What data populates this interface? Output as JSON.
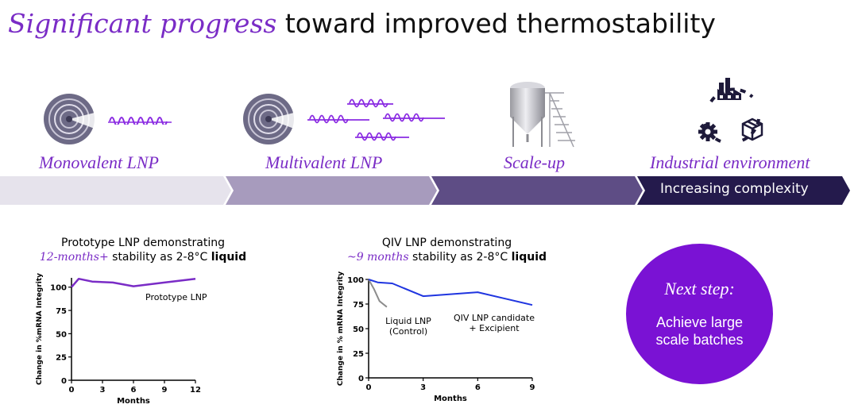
{
  "title": {
    "highlight": "Significant progress",
    "rest": "toward improved thermostability"
  },
  "stages": [
    {
      "label": "Monovalent LNP",
      "icon": "lnp-sphere-with-mrna"
    },
    {
      "label": "Multivalent LNP",
      "icon": "lnp-sphere-with-multiple-mrna"
    },
    {
      "label": "Scale-up",
      "icon": "bioreactor-tank"
    },
    {
      "label": "Industrial environment",
      "icon": "factory-gear-box-cycle"
    }
  ],
  "progress_bar": {
    "label": "Increasing complexity",
    "colors": [
      "#e6e3ec",
      "#a79bbd",
      "#5e4d85",
      "#241a4c"
    ]
  },
  "charts": [
    {
      "caption_line1": "Prototype LNP demonstrating",
      "caption_line2_italic": "12-months+",
      "caption_line2_mid": " stability as 2-8°C ",
      "caption_line2_bold": "liquid",
      "chart_data": {
        "type": "line",
        "xlabel": "Months",
        "ylabel": "Change in %mRNA Integrity",
        "xlim": [
          0,
          12
        ],
        "ylim": [
          0,
          110
        ],
        "x_ticks": [
          0,
          3,
          6,
          9,
          12
        ],
        "y_ticks": [
          0,
          25,
          50,
          75,
          100
        ],
        "series": [
          {
            "name": "Prototype LNP",
            "color": "#7a2cc6",
            "points": [
              [
                0,
                100
              ],
              [
                0.7,
                109
              ],
              [
                2,
                106
              ],
              [
                4,
                105
              ],
              [
                6,
                101
              ],
              [
                9,
                105
              ],
              [
                12,
                109
              ]
            ]
          }
        ]
      }
    },
    {
      "caption_line1": "QIV LNP demonstrating",
      "caption_line2_italic": "~9 months",
      "caption_line2_mid": " stability as 2-8°C ",
      "caption_line2_bold": "liquid",
      "chart_data": {
        "type": "line",
        "xlabel": "Months",
        "ylabel": "Change in % mRNA Integrity",
        "xlim": [
          0,
          9
        ],
        "ylim": [
          0,
          100
        ],
        "x_ticks": [
          0,
          3,
          6,
          9
        ],
        "y_ticks": [
          0,
          25,
          50,
          75,
          100
        ],
        "series": [
          {
            "name": "Liquid LNP (Control)",
            "label_lines": [
              "Liquid LNP",
              "(Control)"
            ],
            "color": "#8c8c8c",
            "points": [
              [
                0,
                100
              ],
              [
                0.3,
                90
              ],
              [
                0.6,
                78
              ],
              [
                1,
                72
              ]
            ]
          },
          {
            "name": "QIV LNP candidate + Excipient",
            "label_lines": [
              "QIV LNP candidate",
              "+ Excipient"
            ],
            "color": "#1f35e0",
            "points": [
              [
                0,
                100
              ],
              [
                0.5,
                97
              ],
              [
                1.3,
                96
              ],
              [
                3,
                83
              ],
              [
                6,
                87
              ],
              [
                9,
                74
              ]
            ]
          }
        ]
      }
    }
  ],
  "next_step": {
    "title": "Next step:",
    "body_line1": "Achieve large",
    "body_line2": "scale batches",
    "color": "#7a12d4"
  }
}
